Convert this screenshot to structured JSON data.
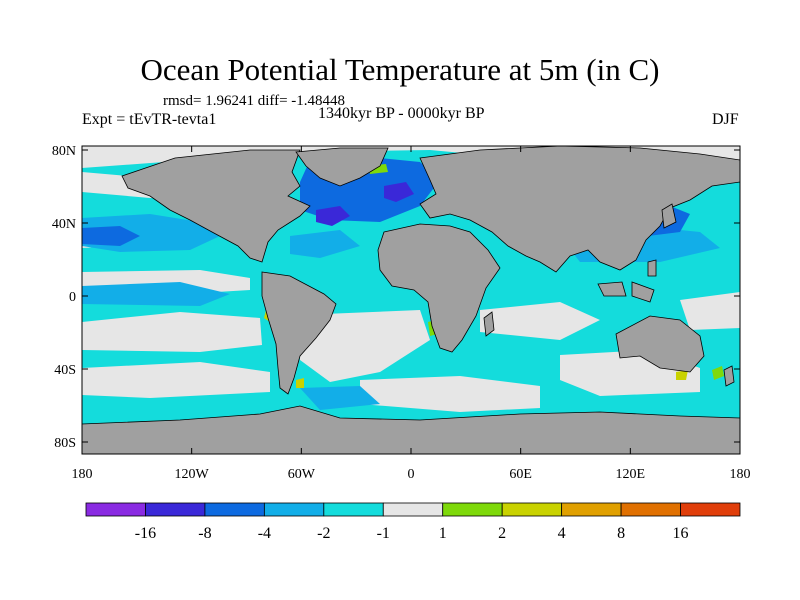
{
  "figure": {
    "title": "Ocean Potential Temperature at 5m (in C)",
    "stats": "rmsd= 1.96241 diff= -1.48448",
    "experiment": "Expt = tEvTR-tevta1",
    "period": "1340kyr BP - 0000kyr BP",
    "season": "DJF"
  },
  "axes": {
    "lon_labels": [
      "180",
      "120W",
      "60W",
      "0",
      "60E",
      "120E",
      "180"
    ],
    "lat_labels": [
      "80N",
      "40N",
      "0",
      "40S",
      "80S"
    ]
  },
  "colorbar": {
    "colors": [
      "#8a2be2",
      "#3a28d8",
      "#0d6ae0",
      "#12aee8",
      "#14dcdc",
      "#e6e6e6",
      "#7ed90a",
      "#c9d200",
      "#e0a000",
      "#e07000",
      "#e03e0a"
    ],
    "labels": [
      "-16",
      "-8",
      "-4",
      "-2",
      "-1",
      "1",
      "2",
      "4",
      "8",
      "16"
    ]
  },
  "colors": {
    "land": "#a0a0a0",
    "missing": "#e8e8e8"
  }
}
